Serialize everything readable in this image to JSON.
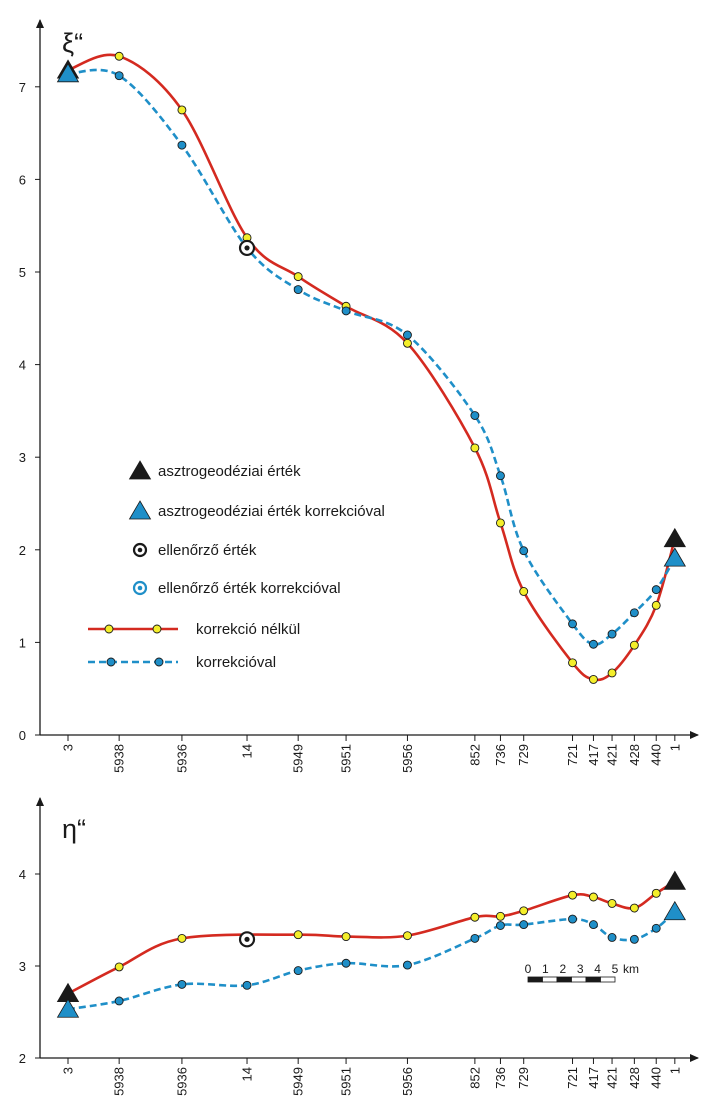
{
  "chart_data": [
    {
      "type": "line",
      "title": "",
      "ylabel": "ξ“",
      "xlabel": "",
      "ylim": [
        0,
        7.5
      ],
      "yticks": [
        "0",
        "1",
        "2",
        "3",
        "4",
        "5",
        "6",
        "7"
      ],
      "x": [
        0,
        1.1,
        2.45,
        3.85,
        4.95,
        5.98,
        7.3,
        8.75,
        9.3,
        9.8,
        10.85,
        11.3,
        11.7,
        12.18,
        12.65,
        13.05
      ],
      "categories": [
        "3",
        "5938",
        "5936",
        "14",
        "5949",
        "5951",
        "5956",
        "852",
        "736",
        "729",
        "721",
        "417",
        "421",
        "428",
        "440",
        "1"
      ],
      "series": [
        {
          "name": "korrekció nélkül",
          "color": "#d42a20",
          "marker_fill": "#f4ee2a",
          "values": [
            null,
            7.33,
            6.75,
            5.37,
            4.95,
            4.63,
            4.23,
            3.1,
            2.29,
            1.55,
            0.78,
            0.6,
            0.67,
            0.97,
            1.4,
            null
          ]
        },
        {
          "name": "korrekcióval",
          "color": "#1f8fc8",
          "marker_fill": "#1f8fc8",
          "values": [
            null,
            7.12,
            6.37,
            null,
            4.81,
            4.58,
            4.32,
            3.45,
            2.8,
            1.99,
            1.2,
            0.98,
            1.09,
            1.32,
            1.57,
            null
          ]
        }
      ],
      "astro": {
        "black": [
          [
            0,
            7.18
          ],
          [
            13.05,
            2.12
          ]
        ],
        "blue": [
          [
            0,
            7.14
          ],
          [
            13.05,
            1.91
          ]
        ]
      },
      "control": [
        [
          3.85,
          5.26
        ]
      ],
      "legend": [
        "asztrogeodéziai érték",
        "asztrogeodéziai érték korrekcióval",
        "ellenőrző érték",
        "ellenőrző érték korrekcióval",
        "korrekció nélkül",
        "korrekcióval"
      ]
    },
    {
      "type": "line",
      "title": "",
      "ylabel": "η“",
      "xlabel": "",
      "ylim": [
        2,
        4.7
      ],
      "yticks": [
        "2",
        "3",
        "4"
      ],
      "x": [
        0,
        1.1,
        2.45,
        3.85,
        4.95,
        5.98,
        7.3,
        8.75,
        9.3,
        9.8,
        10.85,
        11.3,
        11.7,
        12.18,
        12.65,
        13.05
      ],
      "categories": [
        "3",
        "5938",
        "5936",
        "14",
        "5949",
        "5951",
        "5956",
        "852",
        "736",
        "729",
        "721",
        "417",
        "421",
        "428",
        "440",
        "1"
      ],
      "series": [
        {
          "name": "korrekció nélkül",
          "color": "#d42a20",
          "marker_fill": "#f4ee2a",
          "values": [
            null,
            2.99,
            3.3,
            null,
            3.34,
            3.32,
            3.33,
            3.53,
            3.54,
            3.6,
            3.77,
            3.75,
            3.68,
            3.63,
            3.79,
            null
          ]
        },
        {
          "name": "korrekcióval",
          "color": "#1f8fc8",
          "marker_fill": "#1f8fc8",
          "values": [
            null,
            2.62,
            2.8,
            2.79,
            2.95,
            3.03,
            3.01,
            3.3,
            3.44,
            3.45,
            3.51,
            3.45,
            3.31,
            3.29,
            3.41,
            null
          ]
        }
      ],
      "astro": {
        "black": [
          [
            0,
            2.7
          ],
          [
            13.05,
            3.92
          ]
        ],
        "blue": [
          [
            0,
            2.53
          ],
          [
            13.05,
            3.59
          ]
        ]
      },
      "control": [
        [
          3.85,
          3.29
        ]
      ],
      "scalebar": {
        "labels": [
          "0",
          "1",
          "2",
          "3",
          "4",
          "5"
        ],
        "unit": "km"
      }
    }
  ]
}
